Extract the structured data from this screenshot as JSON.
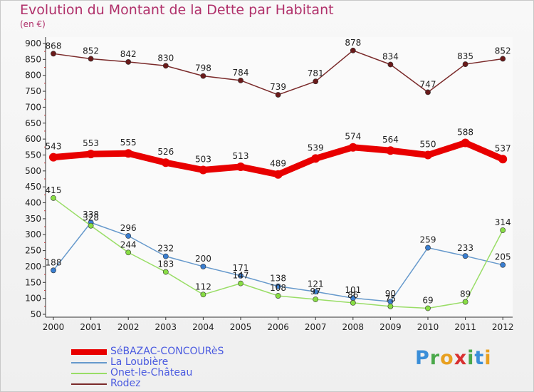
{
  "title": "Evolution du Montant de la Dette par Habitant",
  "subtitle": "(en €)",
  "logo": "Proxiti",
  "chart_data": {
    "type": "line",
    "title": "Evolution du Montant de la Dette par Habitant",
    "ylabel": "(en €)",
    "xlabel": "",
    "ylim": [
      50,
      900
    ],
    "yticks": [
      50,
      100,
      150,
      200,
      250,
      300,
      350,
      400,
      450,
      500,
      550,
      600,
      650,
      700,
      750,
      800,
      850,
      900
    ],
    "grid": false,
    "legend_position": "bottom-left",
    "x": [
      "2000",
      "2001",
      "2002",
      "2003",
      "2004",
      "2005",
      "2006",
      "2007",
      "2008",
      "2009",
      "2010",
      "2011",
      "2012"
    ],
    "series": [
      {
        "name": "SéBAZAC-CONCOURèS",
        "color": "#e80000",
        "dot": "#e80000",
        "thick": true,
        "values": [
          543,
          553,
          555,
          526,
          503,
          513,
          489,
          539,
          574,
          564,
          550,
          588,
          537
        ],
        "labels": [
          "543",
          "553",
          "555",
          "526",
          "503",
          "513",
          "489",
          "539",
          "574",
          "564",
          "550",
          "588",
          "537"
        ]
      },
      {
        "name": "La Loubière",
        "color": "#6699cc",
        "dot": "#3a7ed0",
        "thick": false,
        "values": [
          188,
          338,
          296,
          232,
          200,
          171,
          138,
          121,
          101,
          90,
          259,
          233,
          205
        ],
        "labels": [
          "188",
          "338",
          "296",
          "232",
          "200",
          "171",
          "138",
          "121",
          "101",
          "90",
          "259",
          "233",
          "205"
        ]
      },
      {
        "name": "Onet-le-Château",
        "color": "#99dd66",
        "dot": "#88dd44",
        "thick": false,
        "values": [
          415,
          328,
          244,
          183,
          112,
          147,
          108,
          97,
          86,
          75,
          69,
          89,
          314
        ],
        "labels": [
          "415",
          "328",
          "244",
          "183",
          "112",
          "147",
          "108",
          "97",
          "86",
          "75",
          "69",
          "89",
          "314"
        ]
      },
      {
        "name": "Rodez",
        "color": "#7a2a2a",
        "dot": "#6a1a1a",
        "thick": false,
        "values": [
          868,
          852,
          842,
          830,
          798,
          784,
          739,
          781,
          878,
          834,
          747,
          835,
          852
        ],
        "labels": [
          "868",
          "852",
          "842",
          "830",
          "798",
          "784",
          "739",
          "781",
          "878",
          "834",
          "747",
          "835",
          "852"
        ]
      }
    ]
  }
}
